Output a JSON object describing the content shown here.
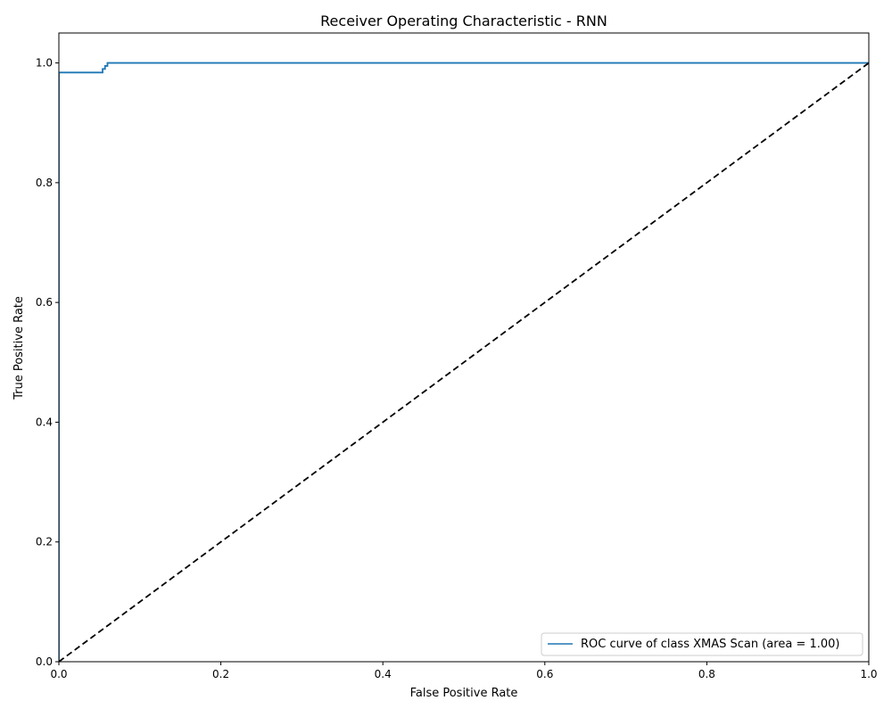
{
  "chart_data": {
    "type": "line",
    "title": "Receiver Operating Characteristic - RNN",
    "xlabel": "False Positive Rate",
    "ylabel": "True Positive Rate",
    "xlim": [
      0.0,
      1.0
    ],
    "ylim": [
      0.0,
      1.05
    ],
    "xticks": [
      0.0,
      0.2,
      0.4,
      0.6,
      0.8,
      1.0
    ],
    "yticks": [
      0.0,
      0.2,
      0.4,
      0.6,
      0.8,
      1.0
    ],
    "xtick_labels": [
      "0.0",
      "0.2",
      "0.4",
      "0.6",
      "0.8",
      "1.0"
    ],
    "ytick_labels": [
      "0.0",
      "0.2",
      "0.4",
      "0.6",
      "0.8",
      "1.0"
    ],
    "grid": false,
    "legend_position": "lower-right",
    "series": [
      {
        "name": "ROC curve of class XMAS Scan (area = 1.00)",
        "color": "#1f77b4",
        "style": "solid",
        "x": [
          0.0,
          0.0,
          0.054,
          0.054,
          0.057,
          0.057,
          0.06,
          0.06,
          1.0
        ],
        "y": [
          0.0,
          0.984,
          0.984,
          0.99,
          0.99,
          0.995,
          0.995,
          1.0,
          1.0
        ]
      },
      {
        "color": "#000000",
        "style": "dashed",
        "x": [
          0.0,
          1.0
        ],
        "y": [
          0.0,
          1.0
        ]
      }
    ]
  }
}
